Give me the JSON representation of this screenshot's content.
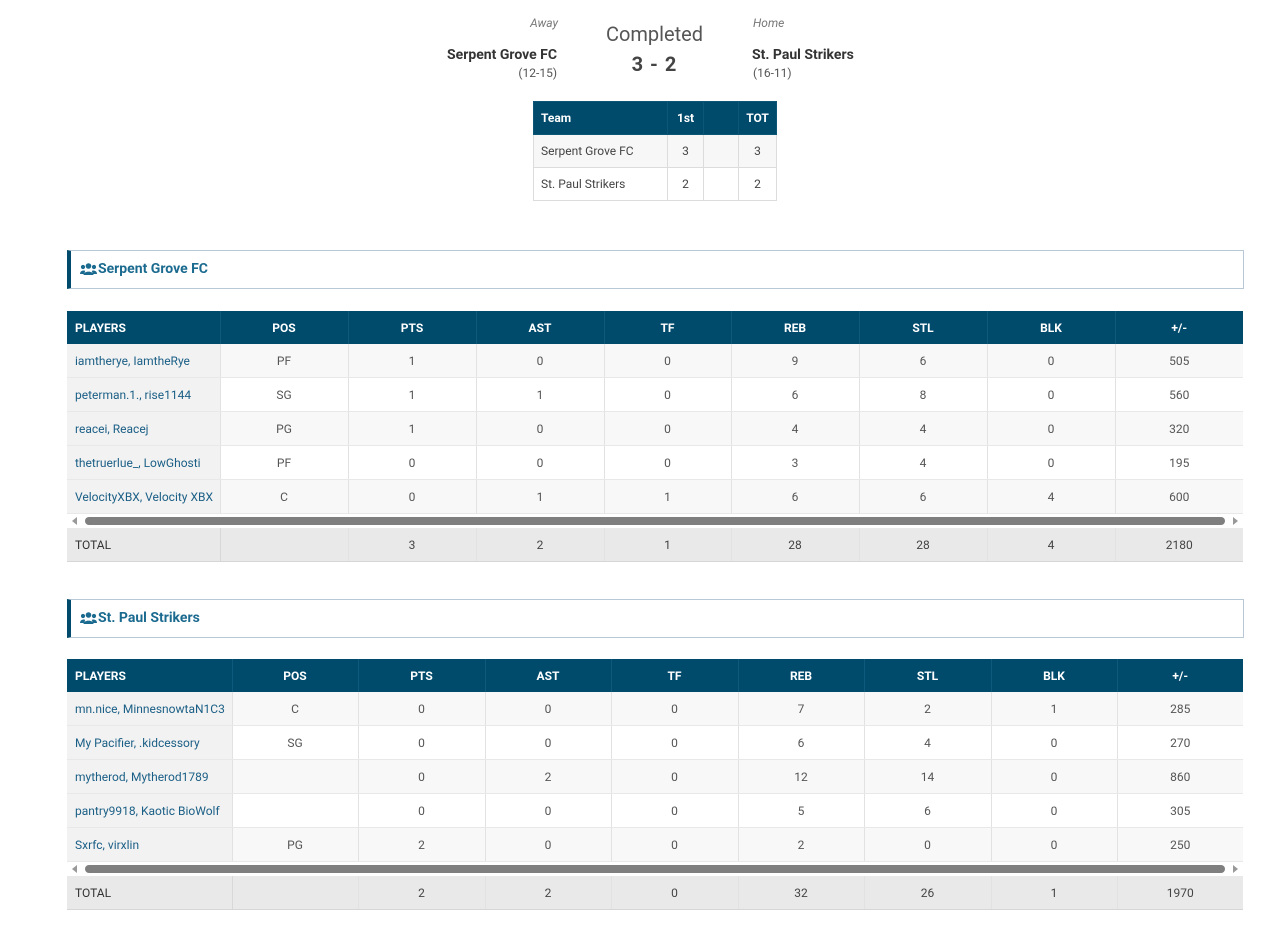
{
  "game": {
    "away_label": "Away",
    "home_label": "Home",
    "status": "Completed",
    "score": "3 - 2",
    "away": {
      "name": "Serpent Grove FC",
      "record": "(12-15)"
    },
    "home": {
      "name": "St. Paul Strikers",
      "record": "(16-11)"
    }
  },
  "line_score": {
    "headers": [
      "Team",
      "1st",
      "",
      "TOT"
    ],
    "rows": [
      [
        "Serpent Grove FC",
        "3",
        "",
        "3"
      ],
      [
        "St. Paul Strikers",
        "2",
        "",
        "2"
      ]
    ]
  },
  "colors": {
    "header_bg": "#004a6b",
    "link": "#1b6a8f"
  },
  "teams": [
    {
      "name": "Serpent Grove FC",
      "icon": "users-icon",
      "columns": [
        "PLAYERS",
        "POS",
        "PTS",
        "AST",
        "TF",
        "REB",
        "STL",
        "BLK",
        "+/-"
      ],
      "players": [
        [
          "iamtherye, IamtheRye",
          "PF",
          "1",
          "0",
          "0",
          "9",
          "6",
          "0",
          "505"
        ],
        [
          "peterman.1., rise1144",
          "SG",
          "1",
          "1",
          "0",
          "6",
          "8",
          "0",
          "560"
        ],
        [
          "reacei, Reacej",
          "PG",
          "1",
          "0",
          "0",
          "4",
          "4",
          "0",
          "320"
        ],
        [
          "thetruerlue_, LowGhosti",
          "PF",
          "0",
          "0",
          "0",
          "3",
          "4",
          "0",
          "195"
        ],
        [
          "VelocityXBX, Velocity XBX",
          "C",
          "0",
          "1",
          "1",
          "6",
          "6",
          "4",
          "600"
        ]
      ],
      "total": [
        "TOTAL",
        "",
        "3",
        "2",
        "1",
        "28",
        "28",
        "4",
        "2180"
      ]
    },
    {
      "name": "St. Paul Strikers",
      "icon": "users-icon",
      "columns": [
        "PLAYERS",
        "POS",
        "PTS",
        "AST",
        "TF",
        "REB",
        "STL",
        "BLK",
        "+/-"
      ],
      "players": [
        [
          "mn.nice, MinnesnowtaN1C3",
          "C",
          "0",
          "0",
          "0",
          "7",
          "2",
          "1",
          "285"
        ],
        [
          "My Pacifier, .kidcessory",
          "SG",
          "0",
          "0",
          "0",
          "6",
          "4",
          "0",
          "270"
        ],
        [
          "mytherod, Mytherod1789",
          "",
          "0",
          "2",
          "0",
          "12",
          "14",
          "0",
          "860"
        ],
        [
          "pantry9918, Kaotic BioWolf",
          "",
          "0",
          "0",
          "0",
          "5",
          "6",
          "0",
          "305"
        ],
        [
          "Sxrfc, virxlin",
          "PG",
          "2",
          "0",
          "0",
          "2",
          "0",
          "0",
          "250"
        ]
      ],
      "total": [
        "TOTAL",
        "",
        "2",
        "2",
        "0",
        "32",
        "26",
        "1",
        "1970"
      ]
    }
  ]
}
